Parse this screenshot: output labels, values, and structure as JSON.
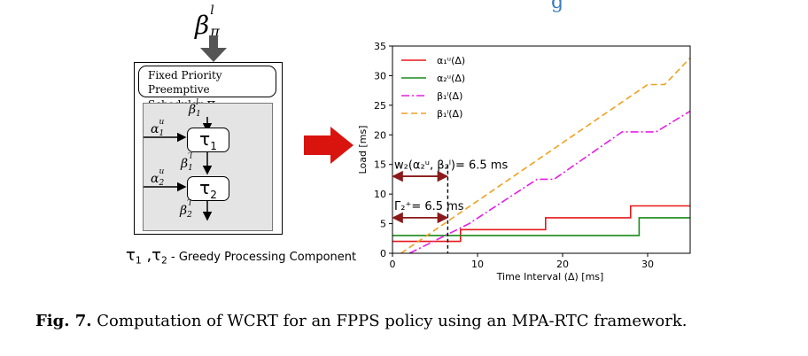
{
  "top_link_fragment": "g",
  "diagram": {
    "beta_top_main": "β",
    "beta_top_sup": "l",
    "beta_top_sub": "π",
    "scheduler_line1": "Fixed Priority",
    "scheduler_line2": "Preemptive Scheduler:",
    "scheduler_symbol": "π",
    "beta1_main": "β",
    "beta1_sub": "1",
    "beta1_sup": "l",
    "alpha1_main": "α",
    "alpha1_sub": "1",
    "alpha1_sup": "u",
    "tau1_main": "τ",
    "tau1_sub": "1",
    "beta1p_main": "β",
    "beta1p_sub": "1",
    "beta1p_sup": "′l",
    "alpha2_main": "α",
    "alpha2_sub": "2",
    "alpha2_sup": "u",
    "tau2_main": "τ",
    "tau2_sub": "2",
    "beta2p_main": "β",
    "beta2p_sub": "2",
    "beta2p_sup": "′l",
    "component_label_prefix": "τ",
    "component_label_sub1": "1",
    "component_label_sep": " ,τ",
    "component_label_sub2": "2",
    "component_label_text": " - Greedy Processing Component"
  },
  "chart_data": {
    "type": "line",
    "xlabel": "Time Interval (Δ)  [ms]",
    "ylabel": "Load [ms]",
    "xlim": [
      0,
      35
    ],
    "ylim": [
      0,
      35
    ],
    "x_ticks": [
      "0",
      "10",
      "20",
      "30"
    ],
    "y_ticks": [
      "0",
      "5",
      "10",
      "15",
      "20",
      "25",
      "30",
      "35"
    ],
    "legend_position": "top-left",
    "series": [
      {
        "name": "α₁ᵘ(Δ)",
        "color": "#e8191b",
        "style": "solid",
        "points": [
          [
            0,
            2
          ],
          [
            8,
            2
          ],
          [
            8,
            4
          ],
          [
            18,
            4
          ],
          [
            18,
            6
          ],
          [
            28,
            6
          ],
          [
            28,
            8
          ],
          [
            35,
            8
          ]
        ]
      },
      {
        "name": "α₂ᵘ(Δ)",
        "color": "#1a8a1a",
        "style": "solid",
        "points": [
          [
            0,
            3
          ],
          [
            29,
            3
          ],
          [
            29,
            6
          ],
          [
            35,
            6
          ]
        ]
      },
      {
        "name": "β₁ˡ(Δ)",
        "color": "#e61ee6",
        "style": "dashdot",
        "points": [
          [
            2,
            0
          ],
          [
            9,
            5
          ],
          [
            17,
            12.5
          ],
          [
            19,
            12.5
          ],
          [
            27,
            20.5
          ],
          [
            31,
            20.5
          ],
          [
            35,
            24
          ]
        ]
      },
      {
        "name": "β₁ˡ(Δ)",
        "color": "#f0a020",
        "style": "dashed",
        "points": [
          [
            1,
            0
          ],
          [
            30,
            28.5
          ],
          [
            32,
            28.5
          ],
          [
            35,
            33
          ]
        ]
      }
    ],
    "annotations": {
      "wcrt_formula": "w₂(α₂ᵘ, β₂ˡ)= 6.5 ms",
      "gamma_label": "Γ₂⁺= 6.5 ms",
      "wcrt_value": 6.5
    }
  },
  "caption": {
    "label": "Fig. 7.",
    "text": "Computation of WCRT for an FPPS policy using an MPA-RTC framework."
  }
}
